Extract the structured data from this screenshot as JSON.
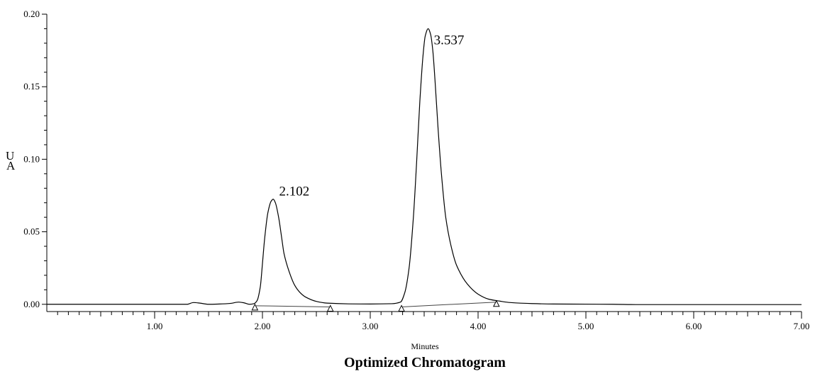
{
  "chart_data": {
    "type": "line",
    "title": "Optimized Chromatogram",
    "xlabel": "Minutes",
    "ylabel_lines": [
      "U",
      "A"
    ],
    "xlim": [
      0,
      7.0
    ],
    "ylim": [
      -0.005,
      0.2
    ],
    "x_ticks": [
      {
        "value": 1.0,
        "label": "1.00"
      },
      {
        "value": 2.0,
        "label": "2.00"
      },
      {
        "value": 3.0,
        "label": "3.00"
      },
      {
        "value": 4.0,
        "label": "4.00"
      },
      {
        "value": 5.0,
        "label": "5.00"
      },
      {
        "value": 6.0,
        "label": "6.00"
      },
      {
        "value": 7.0,
        "label": "7.00"
      }
    ],
    "y_ticks": [
      {
        "value": 0.0,
        "label": "0.00"
      },
      {
        "value": 0.05,
        "label": "0.05"
      },
      {
        "value": 0.1,
        "label": "0.10"
      },
      {
        "value": 0.15,
        "label": "0.15"
      },
      {
        "value": 0.2,
        "label": "0.20"
      }
    ],
    "grid": false,
    "series": [
      {
        "x": [
          0.0,
          0.5,
          1.0,
          1.3,
          1.36,
          1.42,
          1.5,
          1.6,
          1.7,
          1.78,
          1.83,
          1.88,
          1.92,
          1.95,
          1.98,
          2.0,
          2.02,
          2.05,
          2.08,
          2.1,
          2.12,
          2.15,
          2.18,
          2.2,
          2.25,
          2.3,
          2.35,
          2.4,
          2.5,
          2.6,
          2.8,
          3.0,
          3.2,
          3.28,
          3.32,
          3.36,
          3.4,
          3.43,
          3.46,
          3.49,
          3.51,
          3.537,
          3.56,
          3.58,
          3.6,
          3.63,
          3.66,
          3.7,
          3.75,
          3.8,
          3.9,
          4.0,
          4.1,
          4.2,
          4.3,
          4.5,
          4.7,
          5.0,
          5.25,
          5.5,
          6.0,
          7.0
        ],
        "y": [
          0.0,
          0.0,
          0.0,
          0.0,
          0.0012,
          0.0008,
          0.0,
          0.0002,
          0.0006,
          0.0015,
          0.001,
          0.0,
          0.0004,
          0.0025,
          0.012,
          0.028,
          0.045,
          0.063,
          0.071,
          0.0725,
          0.07,
          0.06,
          0.045,
          0.035,
          0.022,
          0.013,
          0.008,
          0.005,
          0.002,
          0.0008,
          0.0003,
          0.0002,
          0.0004,
          0.0015,
          0.008,
          0.025,
          0.06,
          0.098,
          0.14,
          0.172,
          0.185,
          0.19,
          0.186,
          0.175,
          0.155,
          0.12,
          0.09,
          0.06,
          0.04,
          0.027,
          0.014,
          0.007,
          0.0035,
          0.0022,
          0.0012,
          0.0005,
          0.0002,
          0.0001,
          0.0,
          -0.0002,
          -0.0002,
          -0.0002
        ]
      }
    ],
    "baselines": [
      {
        "x": [
          1.93,
          2.63
        ],
        "y": [
          -0.001,
          -0.0018
        ]
      },
      {
        "x": [
          3.29,
          4.17
        ],
        "y": [
          -0.0018,
          0.0015
        ]
      }
    ],
    "markers": [
      {
        "x": 1.93,
        "y": -0.001
      },
      {
        "x": 2.63,
        "y": -0.0018
      },
      {
        "x": 3.29,
        "y": -0.0018
      },
      {
        "x": 4.17,
        "y": 0.0015
      }
    ],
    "peaks": [
      {
        "label": "2.102",
        "x": 2.102,
        "y": 0.0725
      },
      {
        "label": "3.537",
        "x": 3.537,
        "y": 0.19
      }
    ]
  }
}
